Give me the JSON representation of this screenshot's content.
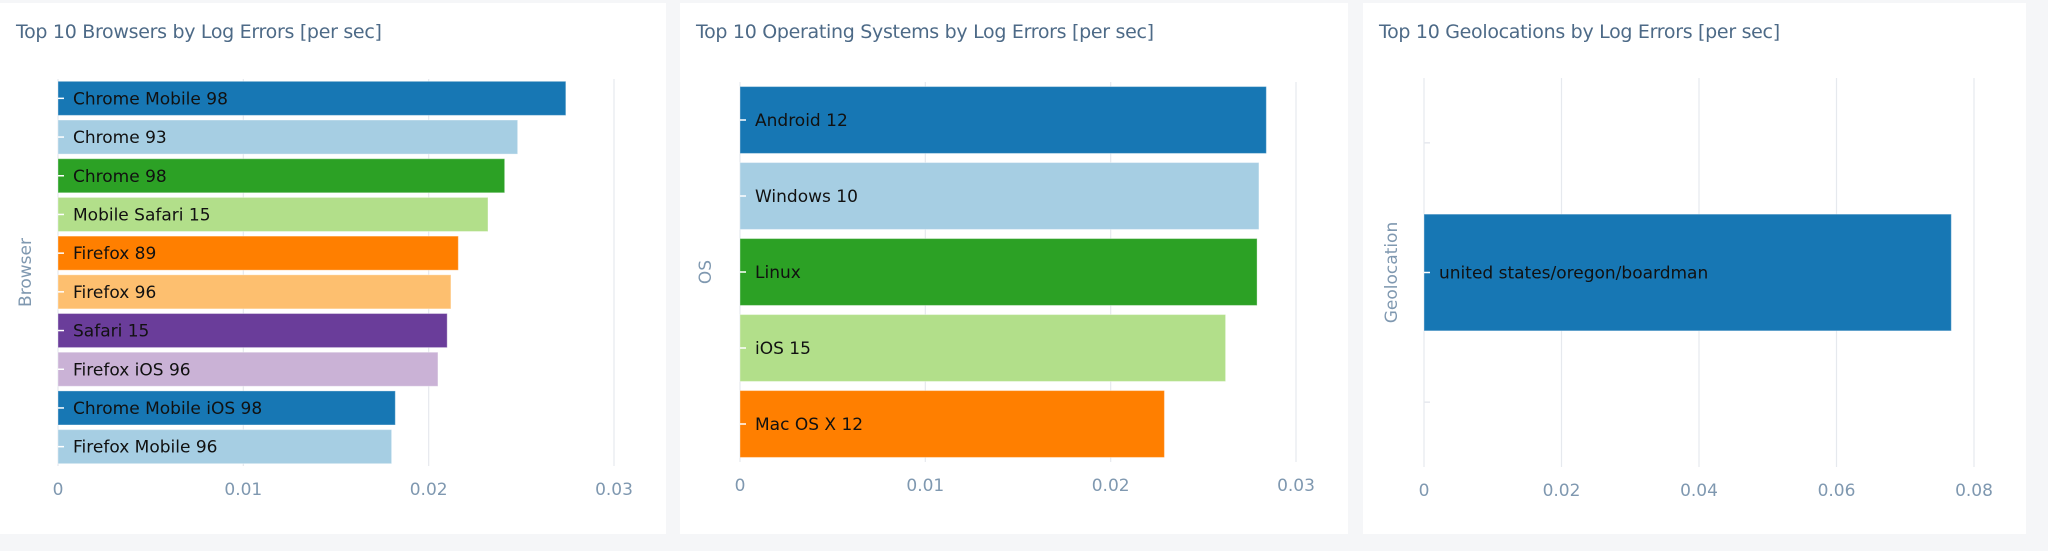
{
  "chart_data": [
    {
      "type": "bar",
      "orientation": "horizontal",
      "title": "Top 10 Browsers by Log Errors [per sec]",
      "ylabel": "Browser",
      "xlabel": "",
      "xlim": [
        0,
        0.03
      ],
      "xticks": [
        "0",
        "0.01",
        "0.02",
        "0.03"
      ],
      "xtick_values": [
        0,
        0.01,
        0.02,
        0.03
      ],
      "grid": true,
      "categories": [
        "Chrome Mobile 98",
        "Chrome 93",
        "Chrome 98",
        "Mobile Safari 15",
        "Firefox 89",
        "Firefox 96",
        "Safari 15",
        "Firefox iOS 96",
        "Chrome Mobile iOS 98",
        "Firefox Mobile 96"
      ],
      "values": [
        0.0274,
        0.0248,
        0.0241,
        0.0232,
        0.0216,
        0.0212,
        0.021,
        0.0205,
        0.0182,
        0.018
      ],
      "colors": [
        "#1777b4",
        "#a6cee3",
        "#2ca125",
        "#b2df8a",
        "#ff7f00",
        "#fdbf6f",
        "#6a3d9a",
        "#cab2d6",
        "#1777b4",
        "#a6cee3"
      ]
    },
    {
      "type": "bar",
      "orientation": "horizontal",
      "title": "Top 10 Operating Systems by Log Errors [per sec]",
      "ylabel": "OS",
      "xlabel": "",
      "xlim": [
        0,
        0.03
      ],
      "xticks": [
        "0",
        "0.01",
        "0.02",
        "0.03"
      ],
      "xtick_values": [
        0,
        0.01,
        0.02,
        0.03
      ],
      "grid": true,
      "categories": [
        "Android 12",
        "Windows 10",
        "Linux",
        "iOS 15",
        "Mac OS X 12"
      ],
      "values": [
        0.0284,
        0.028,
        0.0279,
        0.0262,
        0.0229
      ],
      "colors": [
        "#1777b4",
        "#a6cee3",
        "#2ca125",
        "#b2df8a",
        "#ff7f00"
      ]
    },
    {
      "type": "bar",
      "orientation": "horizontal",
      "title": "Top 10 Geolocations by Log Errors [per sec]",
      "ylabel": "Geolocation",
      "xlabel": "",
      "xlim": [
        0,
        0.08
      ],
      "xticks": [
        "0",
        "0.02",
        "0.04",
        "0.06",
        "0.08"
      ],
      "xtick_values": [
        0,
        0.02,
        0.04,
        0.06,
        0.08
      ],
      "grid": true,
      "categories": [
        "united states/oregon/boardman"
      ],
      "values": [
        0.0767
      ],
      "colors": [
        "#1777b4"
      ]
    }
  ]
}
